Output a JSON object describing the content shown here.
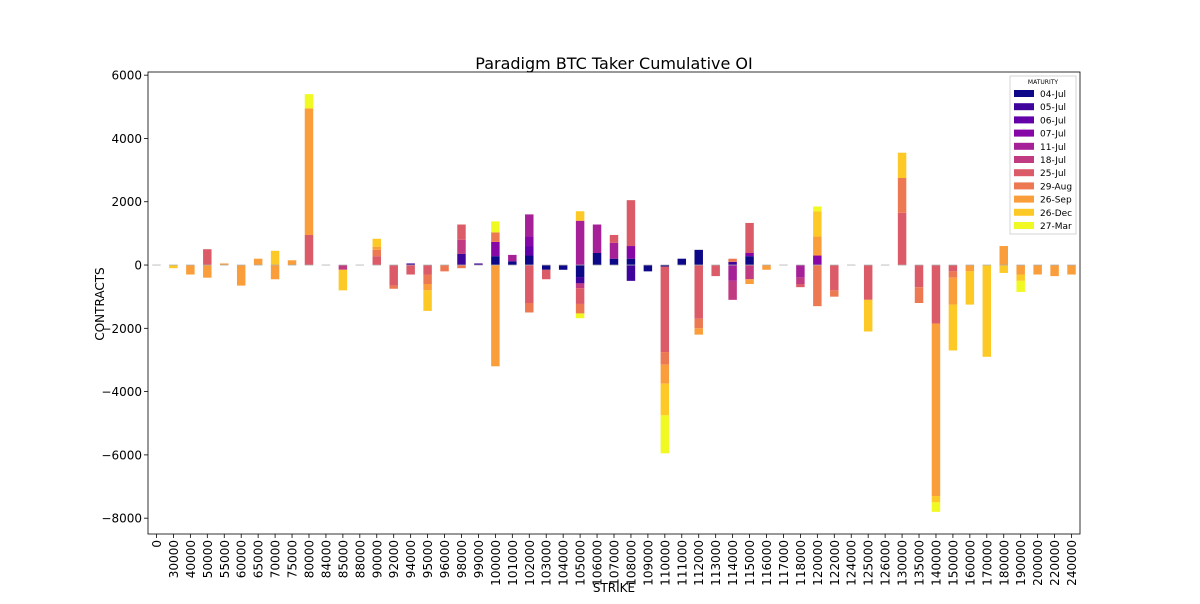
{
  "chart_data": {
    "type": "bar",
    "stacked": true,
    "title": "Paradigm BTC Taker Cumulative OI",
    "xlabel": "STRIKE",
    "ylabel": "CONTRACTS",
    "ylim": [
      -8500,
      6100
    ],
    "yticks": [
      6000,
      4000,
      2000,
      0,
      -2000,
      -4000,
      -6000,
      -8000
    ],
    "ytick_labels": [
      "6000",
      "4000",
      "2000",
      "0",
      "−2000",
      "−4000",
      "−6000",
      "−8000"
    ],
    "grid": false,
    "legend_title": "MATURITY",
    "legend_position": "top-right",
    "categories": [
      "0",
      "30000",
      "40000",
      "50000",
      "55000",
      "60000",
      "65000",
      "70000",
      "75000",
      "80000",
      "84000",
      "85000",
      "88000",
      "90000",
      "92000",
      "94000",
      "95000",
      "96000",
      "98000",
      "99000",
      "100000",
      "101000",
      "102000",
      "103000",
      "104000",
      "105000",
      "106000",
      "107000",
      "108000",
      "109000",
      "110000",
      "111000",
      "112000",
      "113000",
      "114000",
      "115000",
      "116000",
      "117000",
      "118000",
      "120000",
      "122000",
      "124000",
      "125000",
      "126000",
      "130000",
      "135000",
      "140000",
      "150000",
      "160000",
      "170000",
      "180000",
      "190000",
      "200000",
      "220000",
      "240000"
    ],
    "series": [
      {
        "name": "04-Jul",
        "color": "#0d0887",
        "values": [
          0,
          0,
          0,
          0,
          0,
          0,
          0,
          0,
          0,
          0,
          0,
          0,
          0,
          0,
          0,
          0,
          0,
          0,
          0,
          0,
          280,
          120,
          300,
          -150,
          -150,
          -380,
          380,
          200,
          200,
          -200,
          -50,
          200,
          480,
          0,
          0,
          280,
          0,
          0,
          0,
          0,
          0,
          0,
          0,
          0,
          0,
          0,
          0,
          0,
          0,
          0,
          0,
          0,
          0,
          0,
          0
        ]
      },
      {
        "name": "05-Jul",
        "color": "#3e049c",
        "values": [
          0,
          0,
          0,
          0,
          0,
          0,
          0,
          0,
          0,
          0,
          0,
          0,
          0,
          0,
          0,
          50,
          0,
          0,
          350,
          50,
          0,
          0,
          0,
          0,
          0,
          -200,
          0,
          0,
          -500,
          0,
          0,
          0,
          0,
          0,
          100,
          0,
          0,
          0,
          0,
          0,
          0,
          0,
          0,
          0,
          0,
          0,
          0,
          0,
          0,
          0,
          0,
          0,
          0,
          0,
          0
        ]
      },
      {
        "name": "06-Jul",
        "color": "#6300a7",
        "values": [
          0,
          0,
          0,
          0,
          0,
          0,
          0,
          0,
          0,
          0,
          0,
          0,
          0,
          0,
          0,
          0,
          0,
          0,
          0,
          0,
          0,
          0,
          300,
          0,
          0,
          0,
          0,
          0,
          0,
          0,
          0,
          0,
          0,
          0,
          0,
          0,
          0,
          0,
          0,
          0,
          0,
          0,
          0,
          0,
          0,
          0,
          0,
          0,
          0,
          0,
          0,
          0,
          0,
          0,
          0
        ]
      },
      {
        "name": "07-Jul",
        "color": "#8606a6",
        "values": [
          0,
          0,
          0,
          0,
          0,
          0,
          0,
          0,
          0,
          0,
          0,
          0,
          0,
          0,
          0,
          0,
          0,
          0,
          0,
          0,
          450,
          0,
          300,
          0,
          0,
          0,
          0,
          0,
          400,
          0,
          0,
          0,
          0,
          0,
          0,
          100,
          0,
          0,
          0,
          300,
          0,
          0,
          0,
          0,
          0,
          0,
          0,
          0,
          0,
          0,
          0,
          0,
          0,
          0,
          0
        ]
      },
      {
        "name": "11-Jul",
        "color": "#a62098",
        "values": [
          0,
          0,
          0,
          0,
          0,
          0,
          0,
          0,
          0,
          0,
          0,
          0,
          0,
          0,
          0,
          0,
          0,
          0,
          0,
          0,
          0,
          200,
          700,
          0,
          0,
          1400,
          900,
          500,
          0,
          0,
          0,
          0,
          0,
          0,
          -500,
          0,
          0,
          0,
          -400,
          0,
          0,
          0,
          0,
          0,
          0,
          0,
          0,
          0,
          0,
          0,
          0,
          0,
          0,
          0,
          0
        ]
      },
      {
        "name": "18-Jul",
        "color": "#c13b82",
        "values": [
          0,
          0,
          0,
          0,
          0,
          0,
          0,
          0,
          0,
          0,
          0,
          -150,
          0,
          0,
          0,
          0,
          0,
          0,
          450,
          0,
          0,
          0,
          0,
          0,
          0,
          -150,
          0,
          0,
          0,
          0,
          0,
          0,
          0,
          0,
          -600,
          -450,
          0,
          0,
          -200,
          0,
          0,
          0,
          0,
          0,
          0,
          0,
          0,
          0,
          0,
          0,
          0,
          0,
          0,
          0,
          0
        ]
      },
      {
        "name": "25-Jul",
        "color": "#db5c68",
        "values": [
          0,
          0,
          0,
          500,
          0,
          0,
          0,
          0,
          0,
          950,
          0,
          0,
          0,
          280,
          -650,
          -300,
          -300,
          0,
          480,
          0,
          0,
          0,
          -1200,
          -300,
          0,
          -500,
          0,
          250,
          1450,
          0,
          -2700,
          0,
          -1700,
          -350,
          0,
          950,
          0,
          0,
          -100,
          0,
          -800,
          0,
          -1100,
          0,
          1650,
          -700,
          -1850,
          -200,
          0,
          0,
          0,
          0,
          0,
          0,
          0
        ]
      },
      {
        "name": "29-Aug",
        "color": "#ed7953",
        "values": [
          0,
          0,
          0,
          0,
          0,
          0,
          0,
          0,
          0,
          0,
          0,
          0,
          0,
          200,
          -100,
          0,
          -300,
          -200,
          -100,
          0,
          300,
          0,
          -300,
          0,
          0,
          -300,
          0,
          0,
          0,
          0,
          -400,
          0,
          -300,
          0,
          100,
          0,
          0,
          0,
          0,
          -1300,
          -200,
          0,
          0,
          0,
          1100,
          -500,
          0,
          -200,
          0,
          0,
          0,
          0,
          0,
          0,
          0
        ]
      },
      {
        "name": "26-Sep",
        "color": "#fa9e3b",
        "values": [
          0,
          0,
          -300,
          -400,
          50,
          -650,
          200,
          -450,
          150,
          4000,
          0,
          0,
          0,
          100,
          0,
          0,
          -200,
          0,
          0,
          0,
          -3200,
          0,
          0,
          0,
          0,
          0,
          0,
          0,
          0,
          0,
          -600,
          0,
          -200,
          0,
          0,
          -150,
          -150,
          0,
          0,
          600,
          0,
          0,
          0,
          0,
          0,
          0,
          -5450,
          -850,
          -200,
          0,
          600,
          -300,
          -300,
          -350,
          -300
        ]
      },
      {
        "name": "26-Dec",
        "color": "#fdc926",
        "values": [
          0,
          -100,
          0,
          0,
          0,
          0,
          0,
          450,
          0,
          0,
          0,
          -650,
          0,
          250,
          0,
          0,
          -650,
          0,
          0,
          0,
          0,
          0,
          0,
          0,
          0,
          300,
          0,
          0,
          0,
          0,
          -1000,
          0,
          0,
          0,
          0,
          0,
          0,
          0,
          0,
          800,
          0,
          0,
          -1000,
          0,
          800,
          0,
          -200,
          -1450,
          -1050,
          -2900,
          -250,
          -200,
          0,
          0,
          0
        ]
      },
      {
        "name": "27-Mar",
        "color": "#f0f921",
        "values": [
          0,
          0,
          0,
          0,
          0,
          0,
          0,
          0,
          0,
          450,
          0,
          0,
          0,
          0,
          0,
          0,
          0,
          0,
          0,
          0,
          350,
          0,
          0,
          0,
          0,
          -150,
          0,
          0,
          0,
          0,
          -1200,
          0,
          0,
          0,
          0,
          0,
          0,
          0,
          0,
          150,
          0,
          0,
          0,
          0,
          0,
          0,
          -300,
          0,
          0,
          0,
          0,
          -350,
          0,
          0,
          0
        ]
      }
    ]
  }
}
